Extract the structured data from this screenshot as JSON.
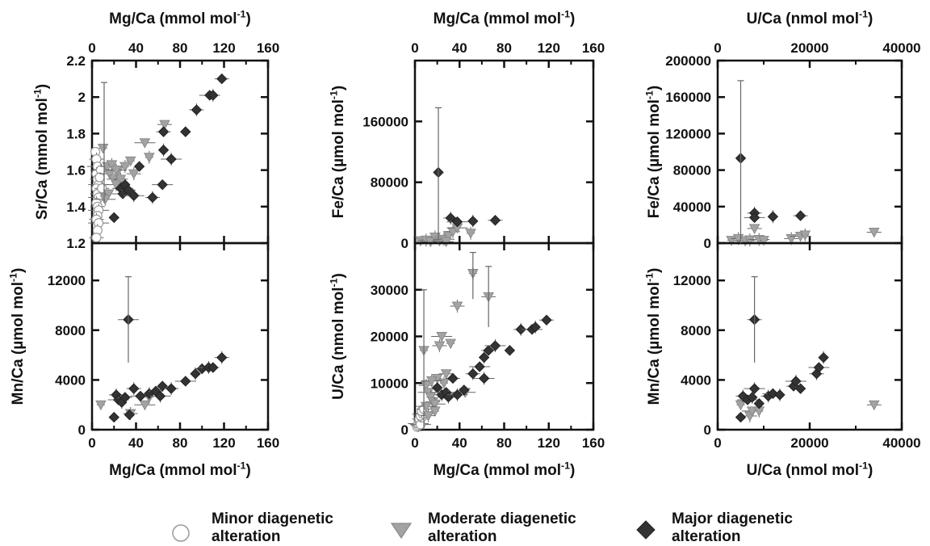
{
  "legend": [
    {
      "label": "Minor diagenetic\nalteration",
      "marker": "circle",
      "color": "#ffffff",
      "stroke": "#999999"
    },
    {
      "label": "Moderate diagenetic\nalteration",
      "marker": "triangle",
      "color": "#a3a3a3",
      "stroke": "#8a8a8a"
    },
    {
      "label": "Major diagenetic\nalteration",
      "marker": "diamond",
      "color": "#333333",
      "stroke": "#222222"
    }
  ],
  "chart_data": [
    {
      "type": "scatter",
      "position": "top-left",
      "xlabel": "Mg/Ca (mmol mol-1)",
      "xlabel_side": "top",
      "ylabel": "Sr/Ca (mmol mol-1)",
      "xlim": [
        0,
        160
      ],
      "ylim": [
        1.2,
        2.2
      ],
      "xticks": [
        "0",
        "40",
        "80",
        "120",
        "160"
      ],
      "yticks": [
        "1.2",
        "1.4",
        "1.6",
        "1.8",
        "2",
        "2.2"
      ],
      "series": [
        {
          "group": "minor",
          "points": [
            [
              3,
              1.7
            ],
            [
              4,
              1.66
            ],
            [
              5,
              1.62
            ],
            [
              4,
              1.58
            ],
            [
              5,
              1.55
            ],
            [
              6,
              1.52
            ],
            [
              4,
              1.5
            ],
            [
              5,
              1.47
            ],
            [
              6,
              1.45
            ],
            [
              4,
              1.42
            ],
            [
              5,
              1.4
            ],
            [
              6,
              1.38
            ],
            [
              5,
              1.35
            ],
            [
              4,
              1.33
            ],
            [
              6,
              1.31
            ],
            [
              5,
              1.27
            ],
            [
              4,
              1.23
            ],
            [
              8,
              1.6
            ],
            [
              7,
              1.56
            ],
            [
              9,
              1.5
            ]
          ]
        },
        {
          "group": "moderate",
          "points": [
            [
              10,
              1.72
            ],
            [
              14,
              1.62
            ],
            [
              16,
              1.58
            ],
            [
              18,
              1.63
            ],
            [
              20,
              1.55
            ],
            [
              22,
              1.52
            ],
            [
              24,
              1.6
            ],
            [
              26,
              1.55
            ],
            [
              28,
              1.5
            ],
            [
              30,
              1.62
            ],
            [
              15,
              1.47
            ],
            [
              12,
              1.44
            ],
            [
              35,
              1.65
            ],
            [
              38,
              1.58
            ],
            [
              48,
              1.75
            ],
            [
              52,
              1.67
            ],
            [
              66,
              1.85
            ],
            [
              22,
              1.6
            ]
          ]
        },
        {
          "group": "major",
          "points": [
            [
              20,
              1.34
            ],
            [
              26,
              1.5
            ],
            [
              28,
              1.47
            ],
            [
              30,
              1.52
            ],
            [
              33,
              1.49
            ],
            [
              38,
              1.46
            ],
            [
              43,
              1.62
            ],
            [
              55,
              1.45
            ],
            [
              64,
              1.52
            ],
            [
              65,
              1.71
            ],
            [
              65,
              1.81
            ],
            [
              72,
              1.66
            ],
            [
              85,
              1.81
            ],
            [
              95,
              1.93
            ],
            [
              107,
              2.01
            ],
            [
              110,
              2.01
            ],
            [
              118,
              2.1
            ]
          ]
        }
      ]
    },
    {
      "type": "scatter",
      "position": "bottom-left",
      "xlabel": "Mg/Ca (mmol mol-1)",
      "xlabel_side": "bottom",
      "ylabel": "Mn/Ca (µmol mol-1)",
      "xlim": [
        0,
        160
      ],
      "ylim": [
        0,
        15000
      ],
      "xticks": [
        "0",
        "40",
        "80",
        "120",
        "160"
      ],
      "yticks": [
        "0",
        "4000",
        "8000",
        "12000"
      ],
      "series": [
        {
          "group": "minor",
          "points": []
        },
        {
          "group": "moderate",
          "points": [
            [
              8,
              2000
            ],
            [
              35,
              1300
            ],
            [
              48,
              2000
            ],
            [
              52,
              2600
            ]
          ]
        },
        {
          "group": "major",
          "points": [
            [
              20,
              1000
            ],
            [
              22,
              2800
            ],
            [
              24,
              2400
            ],
            [
              27,
              2200
            ],
            [
              30,
              2600
            ],
            [
              33,
              8850
            ],
            [
              34,
              1200
            ],
            [
              38,
              3300
            ],
            [
              44,
              2700
            ],
            [
              52,
              2900
            ],
            [
              58,
              3100
            ],
            [
              62,
              2700
            ],
            [
              64,
              3500
            ],
            [
              72,
              3300
            ],
            [
              85,
              3900
            ],
            [
              94,
              4500
            ],
            [
              100,
              4900
            ],
            [
              106,
              5000
            ],
            [
              110,
              5000
            ],
            [
              118,
              5800
            ]
          ]
        }
      ]
    },
    {
      "type": "scatter",
      "position": "top-middle",
      "xlabel": "Mg/Ca (mmol mol-1)",
      "xlabel_side": "top",
      "ylabel": "Fe/Ca (µmol mol-1)",
      "xlim": [
        0,
        160
      ],
      "ylim": [
        0,
        240000
      ],
      "xticks": [
        "0",
        "40",
        "80",
        "120",
        "160"
      ],
      "yticks": [
        "0",
        "80000",
        "160000"
      ],
      "series": [
        {
          "group": "minor",
          "points": []
        },
        {
          "group": "moderate",
          "points": [
            [
              5,
              3000
            ],
            [
              10,
              4000
            ],
            [
              14,
              2000
            ],
            [
              18,
              8000
            ],
            [
              22,
              3000
            ],
            [
              26,
              5000
            ],
            [
              30,
              10000
            ],
            [
              34,
              15000
            ],
            [
              38,
              20000
            ],
            [
              50,
              13000
            ],
            [
              28,
              2000
            ]
          ]
        },
        {
          "group": "major",
          "points": [
            [
              21,
              93000
            ],
            [
              32,
              33000
            ],
            [
              38,
              28000
            ],
            [
              52,
              29000
            ],
            [
              72,
              30000
            ]
          ]
        }
      ]
    },
    {
      "type": "scatter",
      "position": "bottom-middle",
      "xlabel": "Mg/Ca (mmol mol-1)",
      "xlabel_side": "bottom",
      "ylabel": "U/Ca (nmol mol-1)",
      "xlim": [
        0,
        160
      ],
      "ylim": [
        0,
        40000
      ],
      "xticks": [
        "0",
        "40",
        "80",
        "120",
        "160"
      ],
      "yticks": [
        "0",
        "10000",
        "20000",
        "30000"
      ],
      "series": [
        {
          "group": "minor",
          "points": [
            [
              2,
              600
            ],
            [
              3,
              900
            ],
            [
              3,
              1300
            ],
            [
              4,
              1800
            ],
            [
              4,
              2300
            ],
            [
              5,
              1100
            ],
            [
              6,
              2600
            ],
            [
              5,
              3000
            ],
            [
              7,
              3400
            ],
            [
              6,
              4000
            ],
            [
              8,
              4400
            ]
          ]
        },
        {
          "group": "moderate",
          "points": [
            [
              8,
              17000
            ],
            [
              10,
              9500
            ],
            [
              12,
              8000
            ],
            [
              14,
              7000
            ],
            [
              16,
              6000
            ],
            [
              18,
              5500
            ],
            [
              20,
              11000
            ],
            [
              22,
              18000
            ],
            [
              24,
              20000
            ],
            [
              26,
              10000
            ],
            [
              28,
              12000
            ],
            [
              30,
              7000
            ],
            [
              32,
              18500
            ],
            [
              38,
              26500
            ],
            [
              45,
              8000
            ],
            [
              52,
              33500
            ],
            [
              66,
              28500
            ],
            [
              15,
              10500
            ],
            [
              18,
              4000
            ],
            [
              12,
              3000
            ],
            [
              10,
              5000
            ]
          ]
        },
        {
          "group": "major",
          "points": [
            [
              20,
              9000
            ],
            [
              24,
              7500
            ],
            [
              28,
              8000
            ],
            [
              30,
              7000
            ],
            [
              34,
              11000
            ],
            [
              38,
              7500
            ],
            [
              44,
              8500
            ],
            [
              52,
              12000
            ],
            [
              58,
              13500
            ],
            [
              62,
              15500
            ],
            [
              66,
              17000
            ],
            [
              72,
              18000
            ],
            [
              85,
              17000
            ],
            [
              95,
              21500
            ],
            [
              105,
              21500
            ],
            [
              108,
              22000
            ],
            [
              118,
              23500
            ],
            [
              62,
              11000
            ]
          ]
        }
      ]
    },
    {
      "type": "scatter",
      "position": "top-right",
      "xlabel": "U/Ca (nmol mol-1)",
      "xlabel_side": "top",
      "ylabel": "Fe/Ca (µmol mol-1)",
      "xlim": [
        0,
        40000
      ],
      "ylim": [
        0,
        200000
      ],
      "xticks": [
        "0",
        "20000",
        "40000"
      ],
      "yticks": [
        "0",
        "40000",
        "80000",
        "120000",
        "160000",
        "200000"
      ],
      "series": [
        {
          "group": "minor",
          "points": []
        },
        {
          "group": "moderate",
          "points": [
            [
              3000,
              3000
            ],
            [
              4500,
              5000
            ],
            [
              6000,
              2500
            ],
            [
              7000,
              3500
            ],
            [
              8000,
              16000
            ],
            [
              9000,
              4000
            ],
            [
              10000,
              3000
            ],
            [
              16000,
              5000
            ],
            [
              18000,
              7500
            ],
            [
              19000,
              9000
            ],
            [
              34000,
              12000
            ]
          ]
        },
        {
          "group": "major",
          "points": [
            [
              5000,
              93000
            ],
            [
              8000,
              33000
            ],
            [
              8000,
              28000
            ],
            [
              12000,
              29000
            ],
            [
              18000,
              30000
            ]
          ]
        }
      ]
    },
    {
      "type": "scatter",
      "position": "bottom-right",
      "xlabel": "U/Ca (nmol mol-1)",
      "xlabel_side": "bottom",
      "ylabel": "Mn/Ca (µmol mol-1)",
      "xlim": [
        0,
        40000
      ],
      "ylim": [
        0,
        15000
      ],
      "xticks": [
        "0",
        "20000",
        "40000"
      ],
      "yticks": [
        "0",
        "4000",
        "8000",
        "12000"
      ],
      "series": [
        {
          "group": "minor",
          "points": []
        },
        {
          "group": "moderate",
          "points": [
            [
              5000,
              2000
            ],
            [
              7000,
              1100
            ],
            [
              7500,
              1500
            ],
            [
              9000,
              1500
            ],
            [
              34000,
              2000
            ]
          ]
        },
        {
          "group": "major",
          "points": [
            [
              5000,
              1000
            ],
            [
              5500,
              2700
            ],
            [
              6500,
              2400
            ],
            [
              7500,
              2600
            ],
            [
              8000,
              8850
            ],
            [
              8000,
              3300
            ],
            [
              9000,
              2100
            ],
            [
              11000,
              2700
            ],
            [
              12000,
              2900
            ],
            [
              13500,
              2800
            ],
            [
              16500,
              3500
            ],
            [
              17000,
              3900
            ],
            [
              18000,
              3300
            ],
            [
              21500,
              4500
            ],
            [
              22000,
              5000
            ],
            [
              23000,
              5800
            ]
          ]
        }
      ]
    }
  ]
}
